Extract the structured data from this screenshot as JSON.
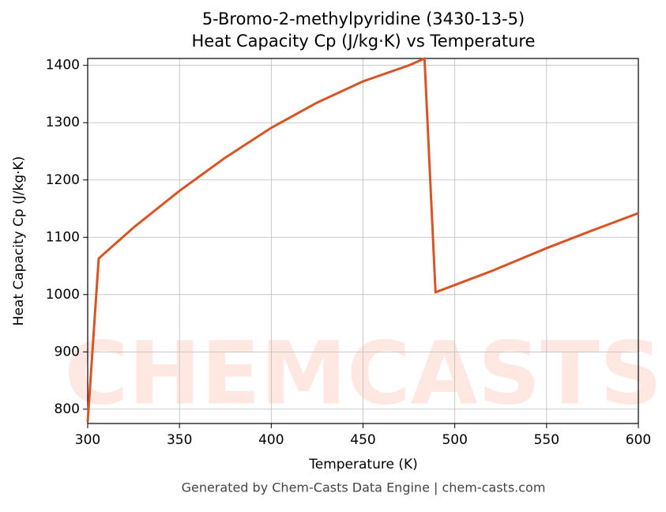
{
  "chart_data": {
    "type": "line",
    "title": "5-Bromo-2-methylpyridine (3430-13-5)",
    "subtitle": "Heat Capacity Cp (J/kg·K) vs Temperature",
    "x_label": "Temperature (K)",
    "y_label": "Heat Capacity Cp (J/kg·K)",
    "footer": "Generated by Chem-Casts Data Engine | chem-casts.com",
    "watermark": "CHEMCASTS",
    "x": [
      300,
      306,
      325,
      350,
      375,
      400,
      425,
      450,
      475,
      483.5,
      489.5,
      520,
      550,
      575,
      600
    ],
    "series": [
      {
        "name": "Cp",
        "color": "#d95425",
        "values": [
          778,
          1063,
          1117,
          1181,
          1239,
          1291,
          1335,
          1372,
          1400,
          1412,
          1004,
          1041,
          1081,
          1112,
          1142
        ]
      }
    ],
    "xlim": [
      300,
      600
    ],
    "xticks": [
      300,
      350,
      400,
      450,
      500,
      550,
      600
    ],
    "ylim": [
      775,
      1412
    ],
    "yticks": [
      800,
      900,
      1000,
      1100,
      1200,
      1300,
      1400
    ],
    "grid": true
  }
}
